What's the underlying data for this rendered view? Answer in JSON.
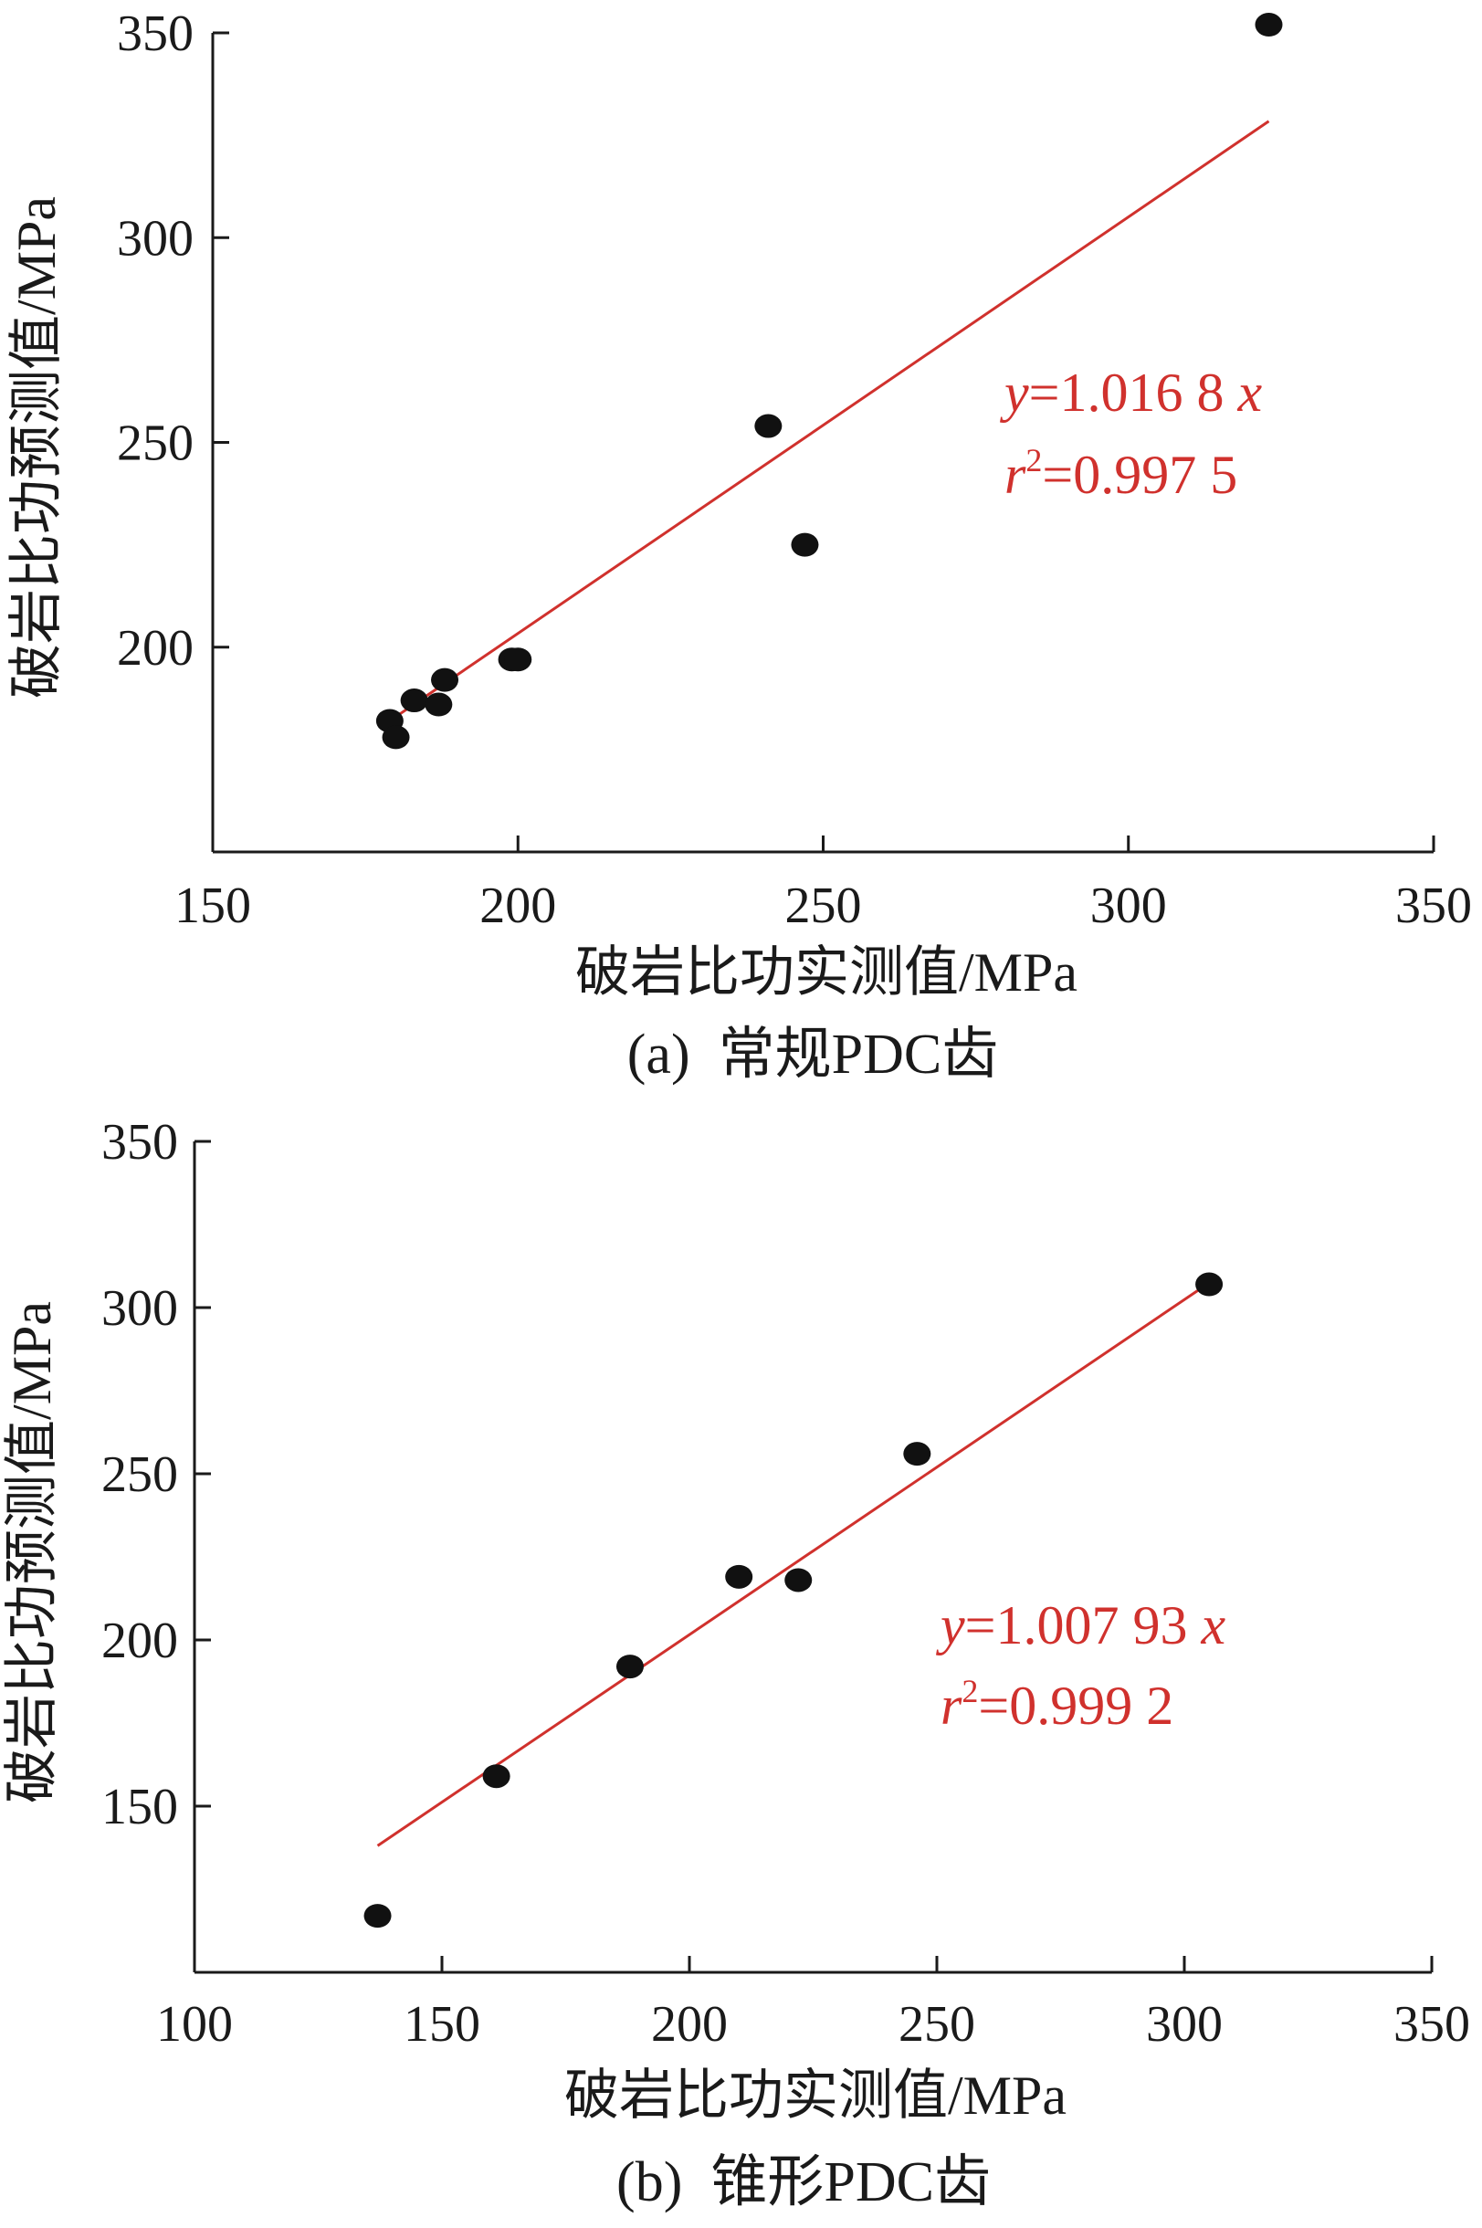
{
  "chart_data": [
    {
      "type": "scatter",
      "caption": "(a)  常规PDC齿",
      "xlabel": "破岩比功实测值/MPa",
      "ylabel": "破岩比功预测值/MPa",
      "xlim": [
        150,
        350
      ],
      "ylim": [
        150,
        350
      ],
      "x_ticks": [
        150,
        200,
        250,
        300,
        350
      ],
      "y_ticks": [
        200,
        250,
        300,
        350
      ],
      "points": [
        {
          "x": 179,
          "y": 182
        },
        {
          "x": 180,
          "y": 178
        },
        {
          "x": 183,
          "y": 187
        },
        {
          "x": 187,
          "y": 186
        },
        {
          "x": 188,
          "y": 192
        },
        {
          "x": 199,
          "y": 197
        },
        {
          "x": 200,
          "y": 197
        },
        {
          "x": 241,
          "y": 254
        },
        {
          "x": 247,
          "y": 225
        },
        {
          "x": 323,
          "y": 352
        }
      ],
      "fit": {
        "slope": 1.0168,
        "x_range": [
          179,
          323
        ]
      },
      "equation": {
        "y_label": "y",
        "eq_text": "=1.016 8 ",
        "x_label": "x",
        "r_label": "r",
        "r_exp": "2",
        "r_text": "=0.997 5"
      },
      "marker_color": "#111111",
      "line_color": "#d0312d"
    },
    {
      "type": "scatter",
      "caption": "(b)  锥形PDC齿",
      "xlabel": "破岩比功实测值/MPa",
      "ylabel": "破岩比功预测值/MPa",
      "xlim": [
        100,
        350
      ],
      "ylim": [
        100,
        350
      ],
      "x_ticks": [
        100,
        150,
        200,
        250,
        300,
        350
      ],
      "y_ticks": [
        150,
        200,
        250,
        300,
        350
      ],
      "points": [
        {
          "x": 137,
          "y": 117
        },
        {
          "x": 161,
          "y": 159
        },
        {
          "x": 188,
          "y": 192
        },
        {
          "x": 210,
          "y": 219
        },
        {
          "x": 222,
          "y": 218
        },
        {
          "x": 246,
          "y": 256
        },
        {
          "x": 305,
          "y": 307
        }
      ],
      "fit": {
        "slope": 1.00793,
        "x_range": [
          137,
          305
        ]
      },
      "equation": {
        "y_label": "y",
        "eq_text": "=1.007 93 ",
        "x_label": "x",
        "r_label": "r",
        "r_exp": "2",
        "r_text": "=0.999 2"
      },
      "marker_color": "#111111",
      "line_color": "#d0312d"
    }
  ]
}
